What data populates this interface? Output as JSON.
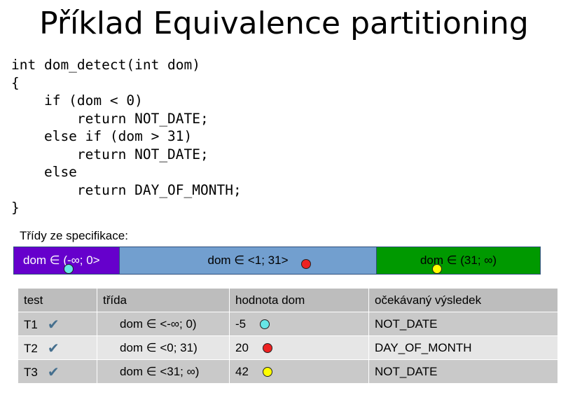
{
  "title": "Příklad Equivalence partitioning",
  "code_lines": [
    "int dom_detect(int dom)",
    "{",
    "    if (dom < 0)",
    "        return NOT_DATE;",
    "    else if (dom > 31)",
    "        return NOT_DATE;",
    "    else",
    "        return DAY_OF_MONTH;",
    "}"
  ],
  "spec_label": "Třídy ze specifikace:",
  "classes": [
    {
      "label": "dom ∈ (-∞; 0>",
      "color": "#6600cc",
      "marker_color": "#66e6e6",
      "marker_icon": "cyan-dot-icon"
    },
    {
      "label": "dom ∈ <1; 31>",
      "color": "#729fcf",
      "marker_color": "#ee2222",
      "marker_icon": "red-dot-icon"
    },
    {
      "label": "dom ∈ (31; ∞)",
      "color": "#009900",
      "marker_color": "#ffff00",
      "marker_icon": "yellow-dot-icon"
    }
  ],
  "table": {
    "headers": [
      "test",
      "třída",
      "hodnota dom",
      "očekávaný výsledek"
    ],
    "check_icon": "checkmark-icon",
    "rows": [
      {
        "test": "T1",
        "trida": "dom ∈ <-∞; 0)",
        "hodnota": "-5",
        "dot_color": "#66e6e6",
        "vysledek": "NOT_DATE"
      },
      {
        "test": "T2",
        "trida": "dom ∈ <0; 31)",
        "hodnota": "20",
        "dot_color": "#ee2222",
        "vysledek": "DAY_OF_MONTH"
      },
      {
        "test": "T3",
        "trida": "dom ∈ <31; ∞)",
        "hodnota": "42",
        "dot_color": "#ffff00",
        "vysledek": "NOT_DATE"
      }
    ]
  }
}
